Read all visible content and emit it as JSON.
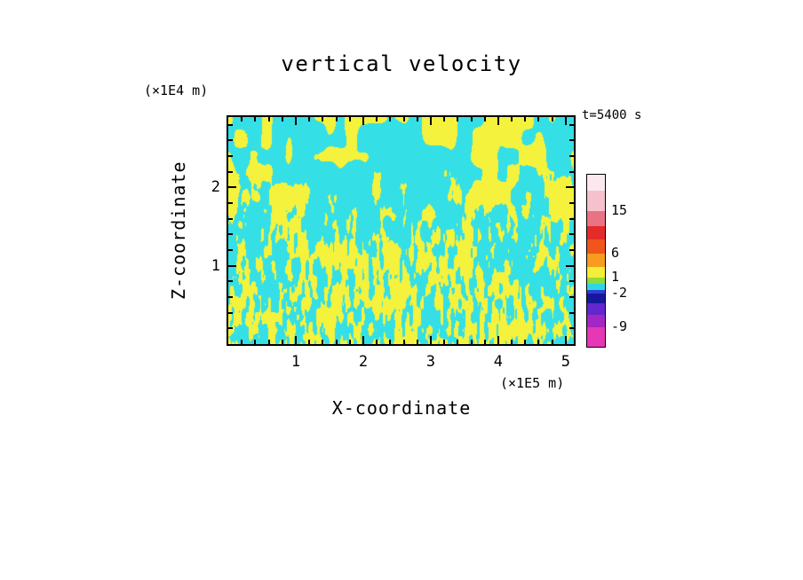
{
  "page": {
    "background": "#ffffff"
  },
  "chart_data": {
    "type": "heatmap",
    "title": "vertical velocity",
    "annotation": "t=5400 s",
    "x_axis": {
      "label": "X-coordinate",
      "unit": "(×1E5 m)",
      "range": [
        0,
        5.12
      ],
      "major_ticks": [
        1,
        2,
        3,
        4,
        5
      ],
      "minor_step": 0.2
    },
    "y_axis": {
      "label": "Z-coordinate",
      "unit": "(×1E4 m)",
      "range": [
        0,
        2.9
      ],
      "major_ticks": [
        1,
        2
      ],
      "minor_step": 0.2
    },
    "field": {
      "description": "Turbulent convective vertical-velocity field: fine alternating cyan/yellow plumes near the bottom boundary merging into larger cells aloft. Cyan = downdraft (approx -2 to 1), yellow = updraft (approx 1 to 6).",
      "colors": {
        "updraft": "#f4f23c",
        "downdraft": "#35dfe6"
      },
      "noise": {
        "fine": {
          "sx": 4.2,
          "sy": 15,
          "sx2": 2.4,
          "sy2": 7.5,
          "w2": 0.38
        },
        "coarse": {
          "sx": 14,
          "sy": 22,
          "sx2": 30,
          "sy2": 40,
          "w2": 0.42
        },
        "blend_pow": 1.15,
        "blend_gain": 1.2,
        "threshold_base": 0.495,
        "threshold_top": 0.555
      }
    },
    "colorbar": {
      "levels": [
        -9,
        -2,
        1,
        6,
        15
      ],
      "segments_top_to_bottom": [
        {
          "color": "#fbe7ee",
          "h": 18
        },
        {
          "color": "#f5c1cd",
          "h": 23
        },
        {
          "color": "#ea7383",
          "h": 17
        },
        {
          "color": "#e52a2a",
          "h": 15
        },
        {
          "color": "#f0561c",
          "h": 16
        },
        {
          "color": "#f79c1e",
          "h": 15
        },
        {
          "color": "#f3ee38",
          "h": 12
        },
        {
          "color": "#8fdc3a",
          "h": 7
        },
        {
          "color": "#2bd8e6",
          "h": 7
        },
        {
          "color": "#2e3fd8",
          "h": 4
        },
        {
          "color": "#17179c",
          "h": 11
        },
        {
          "color": "#6326cf",
          "h": 13
        },
        {
          "color": "#a426c4",
          "h": 14
        },
        {
          "color": "#e637b4",
          "h": 22
        }
      ],
      "labels": [
        {
          "text": "15",
          "offset": 41
        },
        {
          "text": "6",
          "offset": 89
        },
        {
          "text": "1",
          "offset": 116
        },
        {
          "text": "-2",
          "offset": 134
        },
        {
          "text": "-9",
          "offset": 172
        }
      ]
    }
  }
}
